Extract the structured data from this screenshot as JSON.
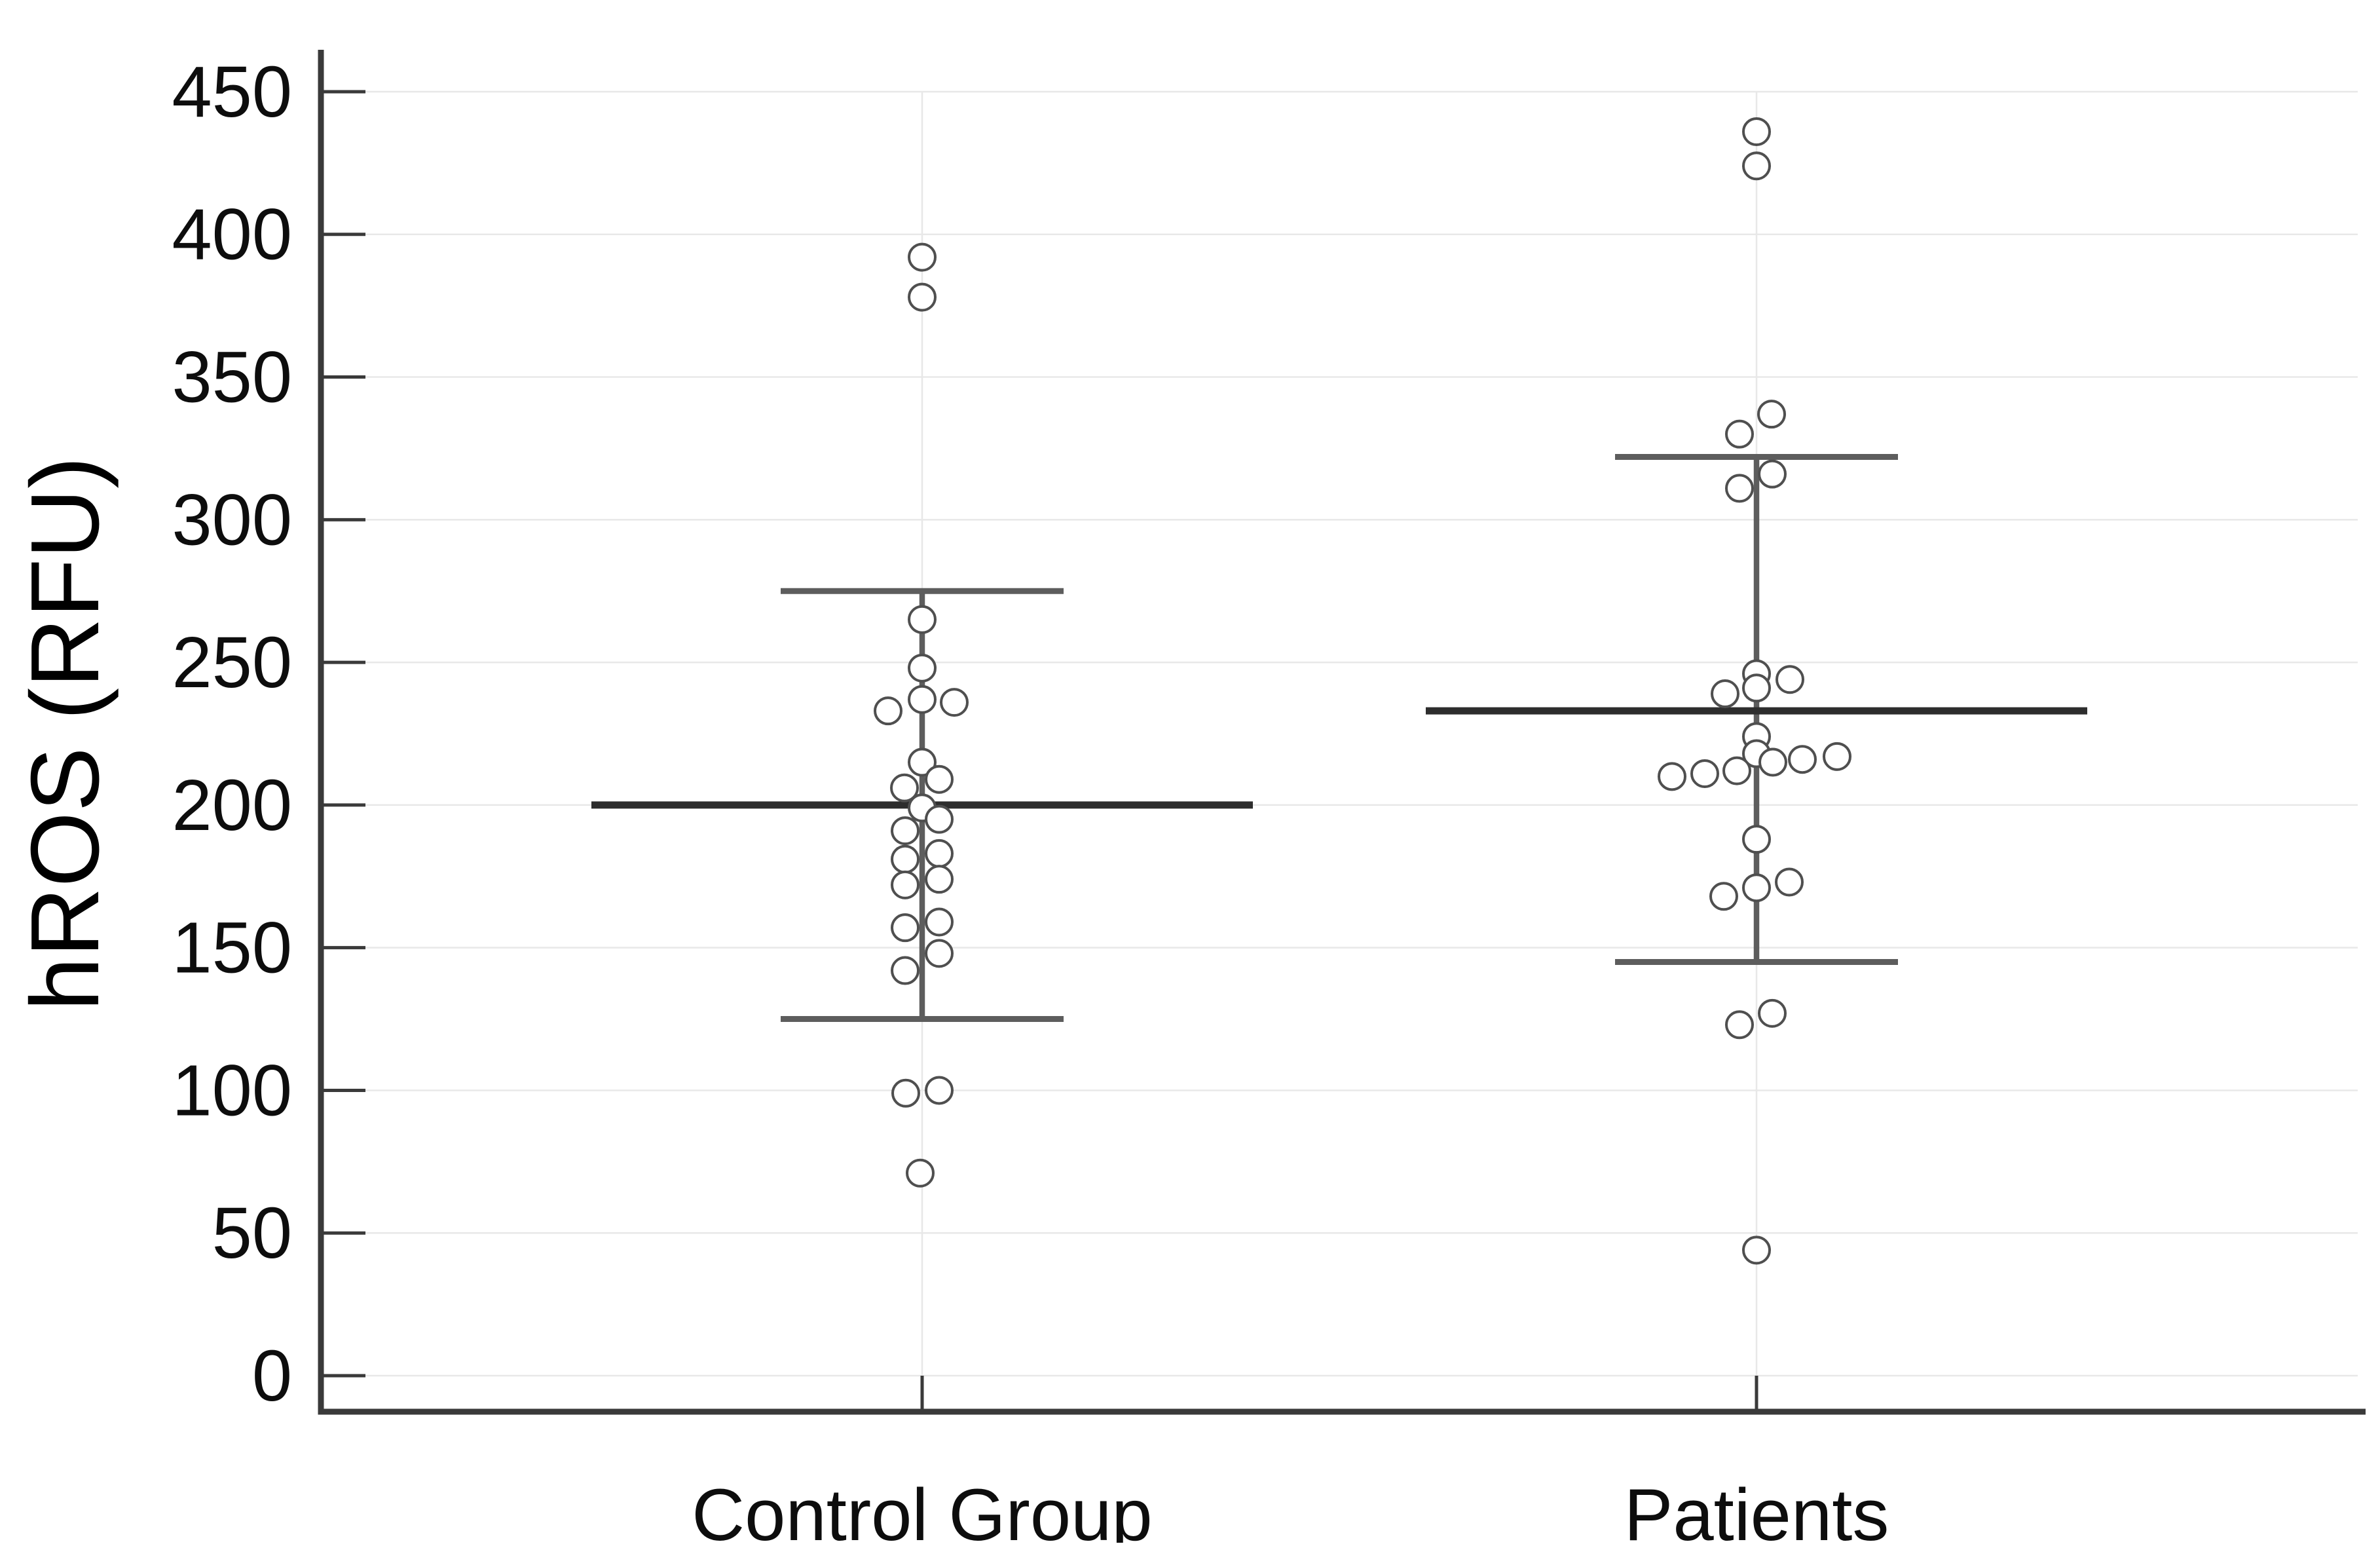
{
  "figure": {
    "kind": "scatter-dot-plot-with-mean-sd-error-bars",
    "background_color": "#ffffff"
  },
  "chart_data": {
    "type": "scatter",
    "title": "",
    "xlabel": "",
    "ylabel": "hROS (RFU)",
    "ylim": [
      0,
      450
    ],
    "yticks": [
      0,
      50,
      100,
      150,
      200,
      250,
      300,
      350,
      400,
      450
    ],
    "grid": true,
    "legend_position": "none",
    "marker": "open-circle",
    "error_bar_style": "mean plus-minus SD, horizontal mean bar and capped whiskers",
    "categories": [
      "Control Group",
      "Patients"
    ],
    "series": [
      {
        "name": "Control Group",
        "n": 24,
        "mean": 200,
        "sd_upper": 275,
        "sd_lower": 125,
        "points": [
          {
            "v": 392,
            "dx": 0
          },
          {
            "v": 378,
            "dx": 0
          },
          {
            "v": 265,
            "dx": 0
          },
          {
            "v": 248,
            "dx": 0
          },
          {
            "v": 237,
            "dx": 0
          },
          {
            "v": 236,
            "dx": 49
          },
          {
            "v": 233,
            "dx": -52
          },
          {
            "v": 215,
            "dx": 0
          },
          {
            "v": 209,
            "dx": 26
          },
          {
            "v": 206,
            "dx": -27
          },
          {
            "v": 199,
            "dx": 0
          },
          {
            "v": 195,
            "dx": 26
          },
          {
            "v": 191,
            "dx": -26
          },
          {
            "v": 183,
            "dx": 26
          },
          {
            "v": 181,
            "dx": -26
          },
          {
            "v": 174,
            "dx": 26
          },
          {
            "v": 172,
            "dx": -26
          },
          {
            "v": 159,
            "dx": 26
          },
          {
            "v": 157,
            "dx": -26
          },
          {
            "v": 148,
            "dx": 26
          },
          {
            "v": 142,
            "dx": -26
          },
          {
            "v": 100,
            "dx": 26
          },
          {
            "v": 99,
            "dx": -25
          },
          {
            "v": 71,
            "dx": -3
          }
        ]
      },
      {
        "name": "Patients",
        "n": 25,
        "mean": 233,
        "sd_upper": 322,
        "sd_lower": 145,
        "points": [
          {
            "v": 436,
            "dx": 0
          },
          {
            "v": 424,
            "dx": 0
          },
          {
            "v": 337,
            "dx": 23
          },
          {
            "v": 330,
            "dx": -26
          },
          {
            "v": 316,
            "dx": 24
          },
          {
            "v": 311,
            "dx": -26
          },
          {
            "v": 246,
            "dx": 0
          },
          {
            "v": 241,
            "dx": 0
          },
          {
            "v": 244,
            "dx": 51
          },
          {
            "v": 239,
            "dx": -48
          },
          {
            "v": 224,
            "dx": 0
          },
          {
            "v": 218,
            "dx": 0
          },
          {
            "v": 217,
            "dx": 123
          },
          {
            "v": 216,
            "dx": 70
          },
          {
            "v": 215,
            "dx": 25
          },
          {
            "v": 212,
            "dx": -30
          },
          {
            "v": 211,
            "dx": -79
          },
          {
            "v": 210,
            "dx": -129
          },
          {
            "v": 188,
            "dx": 0
          },
          {
            "v": 173,
            "dx": 50
          },
          {
            "v": 171,
            "dx": 0
          },
          {
            "v": 168,
            "dx": -50
          },
          {
            "v": 127,
            "dx": 24
          },
          {
            "v": 123,
            "dx": -26
          },
          {
            "v": 44,
            "dx": 0
          }
        ]
      }
    ],
    "colors": {
      "axis": "#3a3a3a",
      "grid": "#e8e8e8",
      "tick_label": "#0d0d0d",
      "axis_title": "#000000",
      "category_label": "#0d0d0d",
      "point_stroke": "#4f4f4f",
      "point_fill": "#ffffff",
      "whisker": "#5d5d5d",
      "mean_line": "#2d2d2d"
    }
  }
}
